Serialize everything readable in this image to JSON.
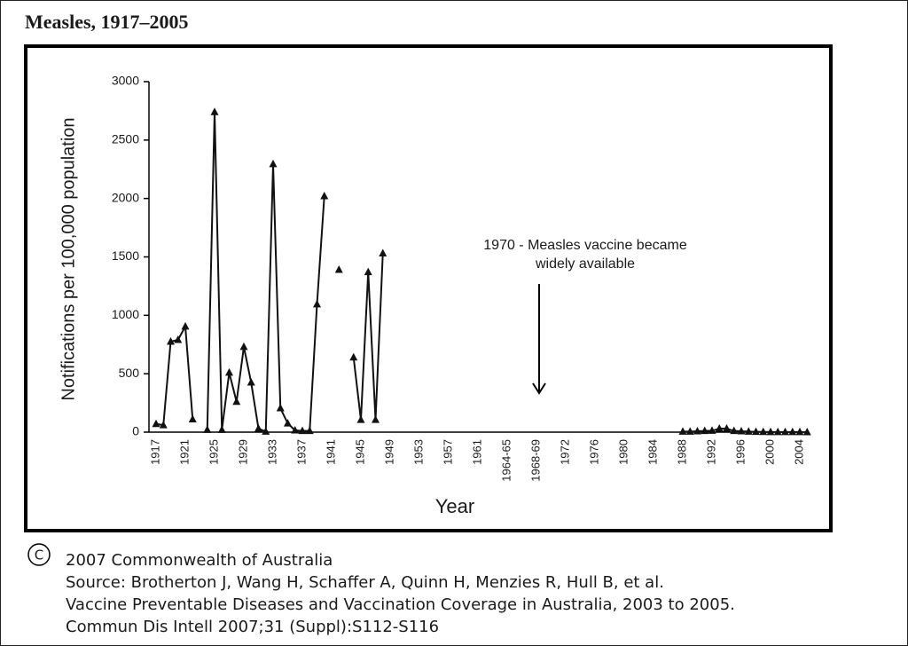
{
  "chart_data": {
    "type": "line",
    "title": "Measles, 1917–2005",
    "x_label": "Year",
    "y_label": "Notifications per 100,000 population",
    "annotation": [
      "1970 - Measles vaccine became",
      "widely available"
    ],
    "categories": [
      "1917",
      null,
      null,
      null,
      "1921",
      null,
      null,
      null,
      "1925",
      null,
      null,
      null,
      "1929",
      null,
      null,
      null,
      "1933",
      null,
      null,
      null,
      "1937",
      null,
      null,
      null,
      "1941",
      null,
      null,
      null,
      "1945",
      null,
      null,
      null,
      "1949",
      null,
      null,
      null,
      "1953",
      null,
      null,
      null,
      "1957",
      null,
      null,
      null,
      "1961",
      null,
      null,
      null,
      "1964-65",
      null,
      null,
      null,
      "1968-69",
      null,
      null,
      null,
      "1972",
      null,
      null,
      null,
      "1976",
      null,
      null,
      null,
      "1980",
      null,
      null,
      null,
      "1984",
      null,
      null,
      null,
      "1988",
      null,
      null,
      null,
      "1992",
      null,
      null,
      null,
      "1996",
      null,
      null,
      null,
      "2000",
      null,
      null,
      null,
      "2004",
      null
    ],
    "series": [
      {
        "color": "#111111",
        "values": [
          70,
          60,
          775,
          790,
          905,
          110,
          null,
          20,
          2740,
          20,
          510,
          260,
          730,
          425,
          30,
          5,
          2295,
          205,
          75,
          15,
          10,
          10,
          1095,
          2020,
          null,
          1390,
          null,
          640,
          105,
          1370,
          105,
          1530,
          null,
          null,
          null,
          null,
          null,
          null,
          null,
          null,
          null,
          null,
          null,
          null,
          null,
          null,
          null,
          null,
          null,
          null,
          null,
          null,
          null,
          null,
          null,
          null,
          null,
          null,
          null,
          null,
          null,
          null,
          null,
          null,
          null,
          null,
          null,
          null,
          null,
          null,
          null,
          null,
          5,
          5,
          8,
          10,
          12,
          30,
          30,
          10,
          8,
          5,
          3,
          2,
          1,
          1,
          1,
          1,
          1,
          0
        ]
      }
    ],
    "ylim": [
      0,
      3000
    ],
    "yticks": [
      0,
      500,
      1000,
      1500,
      2000,
      2500,
      3000
    ]
  },
  "footer": {
    "copyright_mark": "C",
    "lines": [
      "2007 Commonwealth of Australia",
      "Source: Brotherton J, Wang H, Schaffer A, Quinn H, Menzies R, Hull B, et al.",
      "Vaccine Preventable Diseases and Vaccination Coverage in Australia, 2003 to 2005.",
      "Commun Dis Intell 2007;31 (Suppl):S112-S116"
    ]
  }
}
